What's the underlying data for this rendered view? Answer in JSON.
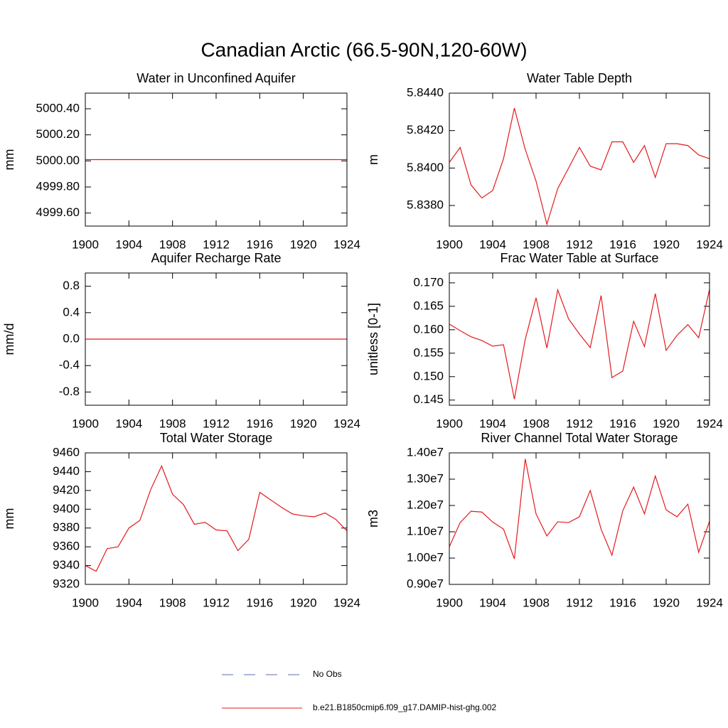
{
  "title": "Canadian Arctic (66.5-90N,120-60W)",
  "legend": [
    {
      "name": "No Obs",
      "color": "#5a6bb5",
      "dash": true
    },
    {
      "name": "b.e21.B1850cmip6.f09_g17.DAMIP-hist-ghg.002",
      "color": "#e41a1c"
    }
  ],
  "chart_data": [
    {
      "type": "line",
      "title": "Water in Unconfined Aquifer",
      "ylabel": "mm",
      "x": [
        1900,
        1901,
        1902,
        1903,
        1904,
        1905,
        1906,
        1907,
        1908,
        1909,
        1910,
        1911,
        1912,
        1913,
        1914,
        1915,
        1916,
        1917,
        1918,
        1919,
        1920,
        1921,
        1922,
        1923,
        1924
      ],
      "xlim": [
        1900,
        1924
      ],
      "xticks": [
        1900,
        1904,
        1908,
        1912,
        1916,
        1920,
        1924
      ],
      "ylim": [
        4999.5,
        5000.52
      ],
      "yticks": [
        {
          "value": 4999.6,
          "label": "4999.60"
        },
        {
          "value": 4999.8,
          "label": "4999.80"
        },
        {
          "value": 5000.0,
          "label": "5000.00"
        },
        {
          "value": 5000.2,
          "label": "5000.20"
        },
        {
          "value": 5000.4,
          "label": "5000.40"
        }
      ],
      "series": [
        {
          "color": "#e41a1c",
          "values": [
            5000.01,
            5000.01,
            5000.01,
            5000.01,
            5000.01,
            5000.01,
            5000.01,
            5000.01,
            5000.01,
            5000.01,
            5000.01,
            5000.01,
            5000.01,
            5000.01,
            5000.01,
            5000.01,
            5000.01,
            5000.01,
            5000.01,
            5000.01,
            5000.01,
            5000.01,
            5000.01,
            5000.01,
            5000.01
          ]
        }
      ]
    },
    {
      "type": "line",
      "title": "Water Table Depth",
      "ylabel": "m",
      "x": [
        1900,
        1901,
        1902,
        1903,
        1904,
        1905,
        1906,
        1907,
        1908,
        1909,
        1910,
        1911,
        1912,
        1913,
        1914,
        1915,
        1916,
        1917,
        1918,
        1919,
        1920,
        1921,
        1922,
        1923,
        1924
      ],
      "xlim": [
        1900,
        1924
      ],
      "xticks": [
        1900,
        1904,
        1908,
        1912,
        1916,
        1920,
        1924
      ],
      "ylim": [
        5.8369,
        5.844
      ],
      "yticks": [
        {
          "value": 5.838,
          "label": "5.8380"
        },
        {
          "value": 5.84,
          "label": "5.8400"
        },
        {
          "value": 5.842,
          "label": "5.8420"
        },
        {
          "value": 5.844,
          "label": "5.8440"
        }
      ],
      "series": [
        {
          "color": "#e41a1c",
          "values": [
            5.8403,
            5.8411,
            5.8391,
            5.8384,
            5.8388,
            5.8405,
            5.8432,
            5.841,
            5.8393,
            5.837,
            5.8389,
            5.84,
            5.8411,
            5.8401,
            5.8399,
            5.8414,
            5.8414,
            5.8403,
            5.8412,
            5.8395,
            5.8413,
            5.8413,
            5.8412,
            5.8407,
            5.8405
          ]
        }
      ]
    },
    {
      "type": "line",
      "title": "Aquifer Recharge Rate",
      "ylabel": "mm/d",
      "x": [
        1900,
        1901,
        1902,
        1903,
        1904,
        1905,
        1906,
        1907,
        1908,
        1909,
        1910,
        1911,
        1912,
        1913,
        1914,
        1915,
        1916,
        1917,
        1918,
        1919,
        1920,
        1921,
        1922,
        1923,
        1924
      ],
      "xlim": [
        1900,
        1924
      ],
      "xticks": [
        1900,
        1904,
        1908,
        1912,
        1916,
        1920,
        1924
      ],
      "ylim": [
        -1,
        1
      ],
      "yticks": [
        -0.8,
        -0.4,
        {
          "value": 0,
          "label": "0.0"
        },
        0.4,
        0.8
      ],
      "series": [
        {
          "color": "#e41a1c",
          "values": [
            0,
            0,
            0,
            0,
            0,
            0,
            0,
            0,
            0,
            0,
            0,
            0,
            0,
            0,
            0,
            0,
            0,
            0,
            0,
            0,
            0,
            0,
            0,
            0,
            0
          ]
        }
      ]
    },
    {
      "type": "line",
      "title": "Frac Water Table at Surface",
      "ylabel": "unitless [0-1]",
      "x": [
        1900,
        1901,
        1902,
        1903,
        1904,
        1905,
        1906,
        1907,
        1908,
        1909,
        1910,
        1911,
        1912,
        1913,
        1914,
        1915,
        1916,
        1917,
        1918,
        1919,
        1920,
        1921,
        1922,
        1923,
        1924
      ],
      "xlim": [
        1900,
        1924
      ],
      "xticks": [
        1900,
        1904,
        1908,
        1912,
        1916,
        1920,
        1924
      ],
      "ylim": [
        0.1439,
        0.1721
      ],
      "yticks": [
        0.145,
        {
          "value": 0.15,
          "label": "0.150"
        },
        0.155,
        {
          "value": 0.16,
          "label": "0.160"
        },
        0.165,
        {
          "value": 0.17,
          "label": "0.170"
        }
      ],
      "series": [
        {
          "color": "#e41a1c",
          "values": [
            0.1612,
            0.1598,
            0.1585,
            0.1577,
            0.1565,
            0.1568,
            0.1452,
            0.1579,
            0.1668,
            0.1561,
            0.1685,
            0.1623,
            0.1591,
            0.1562,
            0.1673,
            0.1498,
            0.1512,
            0.1618,
            0.1564,
            0.1677,
            0.1556,
            0.1588,
            0.1611,
            0.1583,
            0.1686
          ]
        }
      ]
    },
    {
      "type": "line",
      "title": "Total Water Storage",
      "ylabel": "mm",
      "x": [
        1900,
        1901,
        1902,
        1903,
        1904,
        1905,
        1906,
        1907,
        1908,
        1909,
        1910,
        1911,
        1912,
        1913,
        1914,
        1915,
        1916,
        1917,
        1918,
        1919,
        1920,
        1921,
        1922,
        1923,
        1924
      ],
      "xlim": [
        1900,
        1924
      ],
      "xticks": [
        1900,
        1904,
        1908,
        1912,
        1916,
        1920,
        1924
      ],
      "ylim": [
        9320,
        9460
      ],
      "yticks": [
        9320,
        9340,
        9360,
        9380,
        9400,
        9420,
        9440,
        9460
      ],
      "series": [
        {
          "color": "#e41a1c",
          "values": [
            9340,
            9334,
            9358,
            9360,
            9380,
            9388,
            9421,
            9446,
            9416,
            9405,
            9384,
            9386,
            9378,
            9377,
            9356,
            9368,
            9418,
            9410,
            9402,
            9395,
            9393,
            9392,
            9396,
            9389,
            9377
          ]
        }
      ]
    },
    {
      "type": "line",
      "title": "River Channel Total Water Storage",
      "ylabel": "m3",
      "x": [
        1900,
        1901,
        1902,
        1903,
        1904,
        1905,
        1906,
        1907,
        1908,
        1909,
        1910,
        1911,
        1912,
        1913,
        1914,
        1915,
        1916,
        1917,
        1918,
        1919,
        1920,
        1921,
        1922,
        1923,
        1924
      ],
      "xlim": [
        1900,
        1924
      ],
      "xticks": [
        1900,
        1904,
        1908,
        1912,
        1916,
        1920,
        1924
      ],
      "ylim": [
        9000000,
        14000000
      ],
      "yticks": [
        {
          "value": 9000000,
          "label": "0.90e7"
        },
        {
          "value": 10000000,
          "label": "1.00e7"
        },
        {
          "value": 11000000,
          "label": "1.10e7"
        },
        {
          "value": 12000000,
          "label": "1.20e7"
        },
        {
          "value": 13000000,
          "label": "1.30e7"
        },
        {
          "value": 14000000,
          "label": "1.40e7"
        }
      ],
      "series": [
        {
          "color": "#e41a1c",
          "values": [
            10430000,
            11350000,
            11780000,
            11750000,
            11370000,
            11100000,
            9970000,
            13770000,
            11680000,
            10840000,
            11380000,
            11350000,
            11570000,
            12570000,
            11100000,
            10110000,
            11800000,
            12700000,
            11680000,
            13120000,
            11830000,
            11570000,
            12050000,
            10220000,
            11400000
          ]
        }
      ]
    }
  ]
}
